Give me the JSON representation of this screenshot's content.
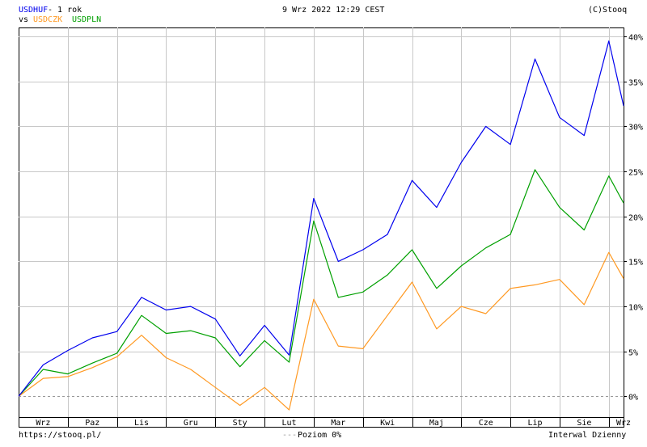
{
  "header": {
    "symbol": "USDHUF",
    "period": " - 1 rok",
    "vs": "vs",
    "compare1": "USDCZK",
    "compare2": "USDPLN",
    "datetime": "9 Wrz 2022 12:29 CEST",
    "copyright": "(C)Stooq"
  },
  "footer": {
    "url": "https://stooq.pl/",
    "level_prefix": "---",
    "level": "Poziom 0%",
    "interval": "Interwal Dzienny"
  },
  "colors": {
    "USDHUF": "#0000ee",
    "USDCZK": "#ff9922",
    "USDPLN": "#00a000",
    "grid": "#c8c8c8",
    "zero_line": "#999999"
  },
  "chart_data": {
    "type": "line",
    "title": "USDHUF - 1 rok",
    "x_labels": [
      "Wrz",
      "Paz",
      "Lis",
      "Gru",
      "Sty",
      "Lut",
      "Mar",
      "Kwi",
      "Maj",
      "Cze",
      "Lip",
      "Sie",
      "Wrz"
    ],
    "y_ticks": [
      0,
      5,
      10,
      15,
      20,
      25,
      30,
      35,
      40
    ],
    "y_tick_labels": [
      "0%",
      "5%",
      "10%",
      "15%",
      "20%",
      "25%",
      "30%",
      "35%",
      "40%"
    ],
    "ylim": [
      -2.3,
      41
    ],
    "x": [
      0,
      0.5,
      1,
      1.5,
      2,
      2.5,
      3,
      3.5,
      4,
      4.5,
      5,
      5.5,
      6,
      6.5,
      7,
      7.5,
      8,
      8.5,
      9,
      9.5,
      10,
      10.5,
      11,
      11.5,
      12,
      12.3
    ],
    "legend": [
      "USDHUF",
      "USDCZK",
      "USDPLN"
    ],
    "grid": true,
    "series": [
      {
        "name": "USDHUF",
        "values": [
          0,
          3.5,
          5.1,
          6.5,
          7.2,
          11,
          9.6,
          10,
          8.6,
          4.5,
          7.9,
          4.6,
          22,
          15,
          16.3,
          18,
          24,
          21,
          26,
          30,
          28,
          37.5,
          31,
          29,
          39.5,
          32.3
        ]
      },
      {
        "name": "USDCZK",
        "values": [
          0,
          2,
          2.2,
          3.2,
          4.4,
          6.8,
          4.3,
          3,
          1,
          -1,
          1,
          -1.5,
          10.8,
          5.6,
          5.3,
          9,
          12.7,
          7.5,
          10,
          9.2,
          12,
          12.4,
          13,
          10.2,
          16,
          13.1
        ]
      },
      {
        "name": "USDPLN",
        "values": [
          0,
          3,
          2.5,
          3.7,
          4.8,
          9,
          7,
          7.3,
          6.5,
          3.3,
          6.2,
          3.8,
          19.5,
          11,
          11.6,
          13.5,
          16.3,
          12,
          14.5,
          16.5,
          18,
          25.2,
          21,
          18.5,
          24.5,
          21.5
        ]
      }
    ]
  }
}
